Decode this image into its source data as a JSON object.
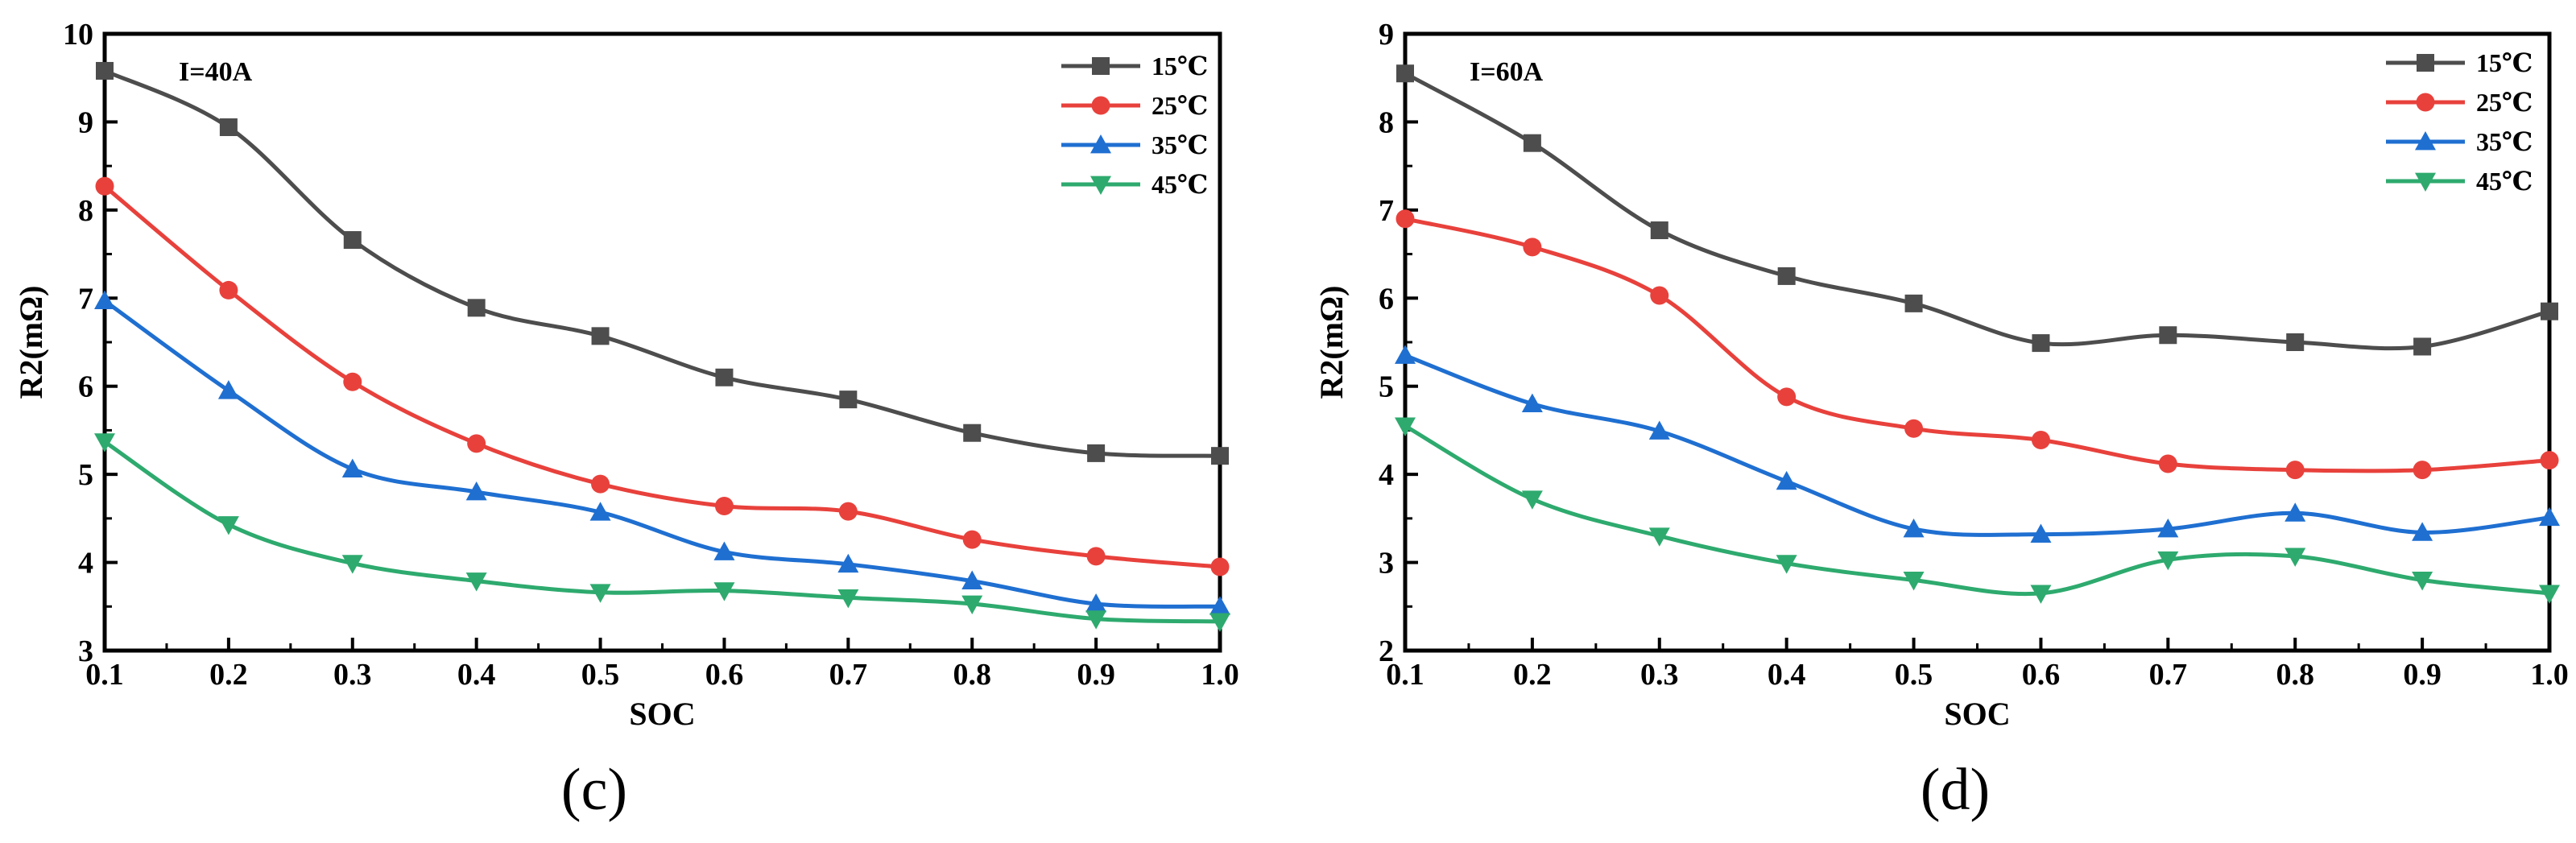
{
  "chart_data": [
    {
      "type": "line",
      "panel_label": "(c)",
      "annotation": "I=40A",
      "xlabel": "SOC",
      "ylabel": "R2(mΩ)",
      "xlim": [
        0.1,
        1.0
      ],
      "ylim": [
        3,
        10
      ],
      "xticks": [
        "0.1",
        "0.2",
        "0.3",
        "0.4",
        "0.5",
        "0.6",
        "0.7",
        "0.8",
        "0.9",
        "1.0"
      ],
      "yticks": [
        "3",
        "4",
        "5",
        "6",
        "7",
        "8",
        "9",
        "10"
      ],
      "legend_position": "top-right",
      "x": [
        0.1,
        0.2,
        0.3,
        0.4,
        0.5,
        0.6,
        0.7,
        0.8,
        0.9,
        1.0
      ],
      "series": [
        {
          "name": "15℃",
          "color": "#4d4d4d",
          "marker": "square",
          "values": [
            9.58,
            8.94,
            7.66,
            6.89,
            6.57,
            6.1,
            5.85,
            5.47,
            5.24,
            5.21
          ]
        },
        {
          "name": "25℃",
          "color": "#e8413c",
          "marker": "circle",
          "values": [
            8.27,
            7.09,
            6.05,
            5.35,
            4.89,
            4.64,
            4.58,
            4.26,
            4.07,
            3.95
          ]
        },
        {
          "name": "35℃",
          "color": "#1f6fd1",
          "marker": "triangle-up",
          "values": [
            6.97,
            5.95,
            5.06,
            4.8,
            4.57,
            4.12,
            3.98,
            3.79,
            3.53,
            3.5
          ]
        },
        {
          "name": "45℃",
          "color": "#2eaa6e",
          "marker": "triangle-down",
          "values": [
            5.37,
            4.43,
            3.99,
            3.79,
            3.66,
            3.68,
            3.6,
            3.53,
            3.36,
            3.33
          ]
        }
      ]
    },
    {
      "type": "line",
      "panel_label": "(d)",
      "annotation": "I=60A",
      "xlabel": "SOC",
      "ylabel": "R2(mΩ)",
      "xlim": [
        0.1,
        1.0
      ],
      "ylim": [
        2,
        9
      ],
      "xticks": [
        "0.1",
        "0.2",
        "0.3",
        "0.4",
        "0.5",
        "0.6",
        "0.7",
        "0.8",
        "0.9",
        "1.0"
      ],
      "yticks": [
        "2",
        "3",
        "4",
        "5",
        "6",
        "7",
        "8",
        "9"
      ],
      "legend_position": "top-right",
      "x": [
        0.1,
        0.2,
        0.3,
        0.4,
        0.5,
        0.6,
        0.7,
        0.8,
        0.9,
        1.0
      ],
      "series": [
        {
          "name": "15℃",
          "color": "#4d4d4d",
          "marker": "square",
          "values": [
            8.55,
            7.76,
            6.77,
            6.25,
            5.94,
            5.49,
            5.58,
            5.5,
            5.45,
            5.85
          ]
        },
        {
          "name": "25℃",
          "color": "#e8413c",
          "marker": "circle",
          "values": [
            6.9,
            6.58,
            6.03,
            4.88,
            4.52,
            4.39,
            4.12,
            4.05,
            4.05,
            4.16
          ]
        },
        {
          "name": "35℃",
          "color": "#1f6fd1",
          "marker": "triangle-up",
          "values": [
            5.35,
            4.8,
            4.49,
            3.92,
            3.38,
            3.32,
            3.38,
            3.56,
            3.34,
            3.51
          ]
        },
        {
          "name": "45℃",
          "color": "#2eaa6e",
          "marker": "triangle-down",
          "values": [
            4.55,
            3.72,
            3.3,
            2.99,
            2.8,
            2.65,
            3.03,
            3.07,
            2.8,
            2.65
          ]
        }
      ]
    }
  ]
}
